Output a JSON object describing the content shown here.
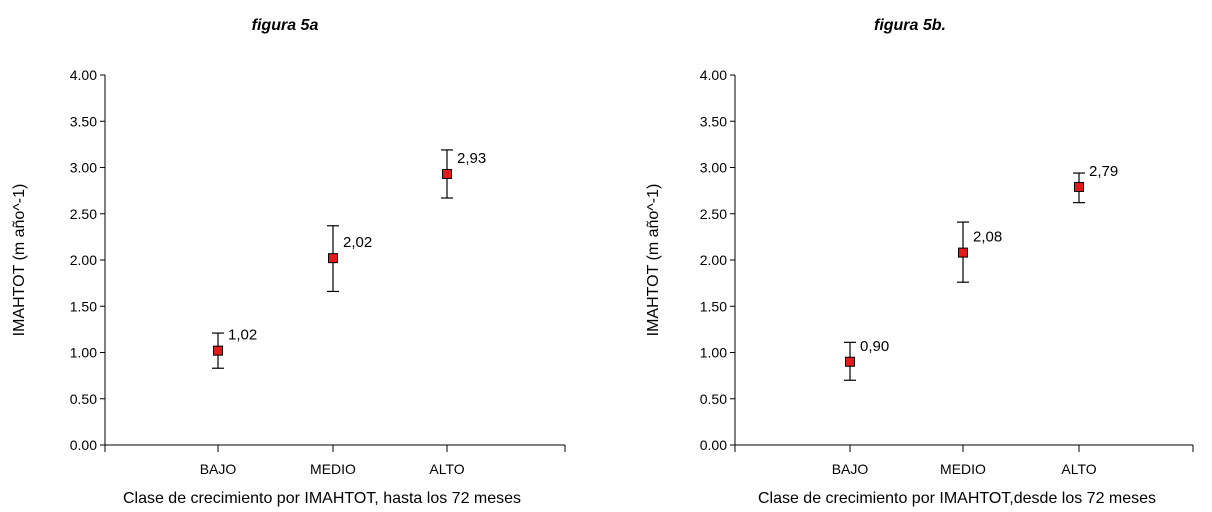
{
  "chart_data": [
    {
      "type": "scatter",
      "title": "figura 5a",
      "xlabel": "Clase de crecimiento por IMAHTOT, hasta los 72 meses",
      "ylabel": "IMAHTOT (m año^-1)",
      "categories": [
        "BAJO",
        "MEDIO",
        "ALTO"
      ],
      "values": [
        1.02,
        2.02,
        2.93
      ],
      "error_low": [
        0.83,
        1.66,
        2.67
      ],
      "error_high": [
        1.21,
        2.37,
        3.19
      ],
      "data_labels": [
        "1,02",
        "2,02",
        "2,93"
      ],
      "y_ticks": [
        "0.00",
        "0.50",
        "1.00",
        "1.50",
        "2.00",
        "2.50",
        "3.00",
        "3.50",
        "4.00"
      ],
      "ylim": [
        0,
        4
      ],
      "marker_color": "#e31a1c",
      "grid": false,
      "legend": "none"
    },
    {
      "type": "scatter",
      "title": "figura 5b.",
      "xlabel": "Clase de crecimiento por IMAHTOT,desde los 72 meses",
      "ylabel": "IMAHTOT (m año^-1)",
      "categories": [
        "BAJO",
        "MEDIO",
        "ALTO"
      ],
      "values": [
        0.9,
        2.08,
        2.79
      ],
      "error_low": [
        0.7,
        1.76,
        2.62
      ],
      "error_high": [
        1.11,
        2.41,
        2.94
      ],
      "data_labels": [
        "0,90",
        "2,08",
        "2,79"
      ],
      "y_ticks": [
        "0.00",
        "0.50",
        "1.00",
        "1.50",
        "2.00",
        "2.50",
        "3.00",
        "3.50",
        "4.00"
      ],
      "ylim": [
        0,
        4
      ],
      "marker_color": "#e31a1c",
      "grid": false,
      "legend": "none"
    }
  ]
}
